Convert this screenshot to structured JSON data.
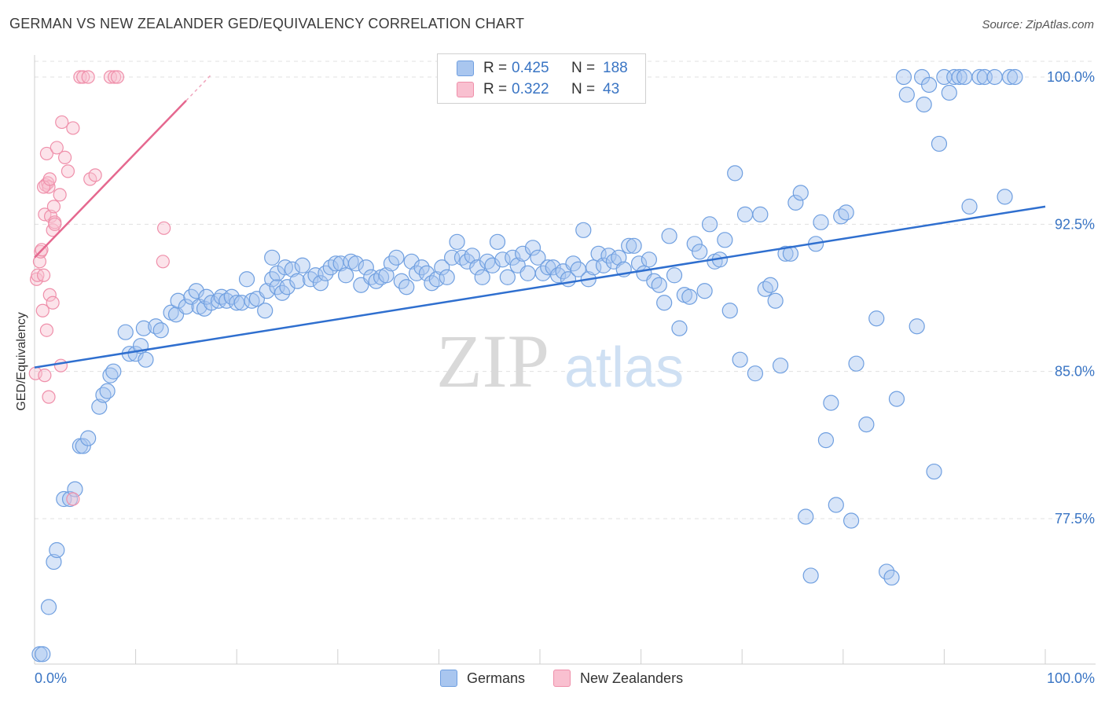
{
  "title": "GERMAN VS NEW ZEALANDER GED/EQUIVALENCY CORRELATION CHART",
  "source": "Source: ZipAtlas.com",
  "watermark": {
    "zip": "ZIP",
    "atlas": "atlas"
  },
  "legend": {
    "rows": [
      {
        "r_label": "R =",
        "r_value": "0.425",
        "n_label": "N =",
        "n_value": "188",
        "color": "#a9c6ef",
        "border": "#6f9fe0"
      },
      {
        "r_label": "R =",
        "r_value": "0.322",
        "n_label": "N =",
        "n_value": "43",
        "color": "#f9c0d0",
        "border": "#ef8faa"
      }
    ]
  },
  "bottom_legend": [
    {
      "label": "Germans",
      "color": "#a9c6ef",
      "border": "#6f9fe0"
    },
    {
      "label": "New Zealanders",
      "color": "#f9c0d0",
      "border": "#ef8faa"
    }
  ],
  "chart_data": {
    "type": "scatter",
    "xlabel": "",
    "ylabel": "GED/Equivalency",
    "xlim": [
      0,
      100
    ],
    "ylim": [
      70.0,
      101.5
    ],
    "x_tick_labels": [
      "0.0%",
      "100.0%"
    ],
    "y_ticks": [
      77.5,
      85.0,
      92.5,
      100.0
    ],
    "y_tick_labels": [
      "77.5%",
      "85.0%",
      "92.5%",
      "100.0%"
    ],
    "grid": "horizontal dashed",
    "series": [
      {
        "name": "Germans",
        "color": "#6f9fe0",
        "fill": "rgba(169,198,239,0.45)",
        "trend": {
          "x": [
            0,
            100
          ],
          "y": [
            85.2,
            93.4
          ]
        },
        "points": [
          [
            0.5,
            70.6
          ],
          [
            0.8,
            70.6
          ],
          [
            1.4,
            73.0
          ],
          [
            1.9,
            75.3
          ],
          [
            2.2,
            75.9
          ],
          [
            2.9,
            78.5
          ],
          [
            3.5,
            78.5
          ],
          [
            4.0,
            79.0
          ],
          [
            4.5,
            81.2
          ],
          [
            4.8,
            81.2
          ],
          [
            5.3,
            81.6
          ],
          [
            6.4,
            83.2
          ],
          [
            6.8,
            83.8
          ],
          [
            7.2,
            84.0
          ],
          [
            7.5,
            84.8
          ],
          [
            7.8,
            85.0
          ],
          [
            9.4,
            85.9
          ],
          [
            10.0,
            85.9
          ],
          [
            10.5,
            86.3
          ],
          [
            11.0,
            85.6
          ],
          [
            9.0,
            87.0
          ],
          [
            10.8,
            87.2
          ],
          [
            12.0,
            87.3
          ],
          [
            12.5,
            87.1
          ],
          [
            13.5,
            88.0
          ],
          [
            14.0,
            87.9
          ],
          [
            14.2,
            88.6
          ],
          [
            15.0,
            88.3
          ],
          [
            15.5,
            88.8
          ],
          [
            16.0,
            89.1
          ],
          [
            16.3,
            88.3
          ],
          [
            16.8,
            88.2
          ],
          [
            17.0,
            88.8
          ],
          [
            17.5,
            88.5
          ],
          [
            18.2,
            88.6
          ],
          [
            18.5,
            88.8
          ],
          [
            19.0,
            88.6
          ],
          [
            19.5,
            88.8
          ],
          [
            20.0,
            88.5
          ],
          [
            20.5,
            88.5
          ],
          [
            21.0,
            89.7
          ],
          [
            21.5,
            88.6
          ],
          [
            22.0,
            88.7
          ],
          [
            22.8,
            88.1
          ],
          [
            23.0,
            89.1
          ],
          [
            23.5,
            89.7
          ],
          [
            24.0,
            89.3
          ],
          [
            24.5,
            89.0
          ],
          [
            25.0,
            89.3
          ],
          [
            23.5,
            90.8
          ],
          [
            24.0,
            90.0
          ],
          [
            24.8,
            90.3
          ],
          [
            25.5,
            90.2
          ],
          [
            26.0,
            89.6
          ],
          [
            26.5,
            90.4
          ],
          [
            27.3,
            89.7
          ],
          [
            27.8,
            89.9
          ],
          [
            28.3,
            89.5
          ],
          [
            28.8,
            90.0
          ],
          [
            29.3,
            90.3
          ],
          [
            29.8,
            90.5
          ],
          [
            30.3,
            90.5
          ],
          [
            30.8,
            89.9
          ],
          [
            31.3,
            90.6
          ],
          [
            31.8,
            90.5
          ],
          [
            32.3,
            89.4
          ],
          [
            32.8,
            90.3
          ],
          [
            33.3,
            89.8
          ],
          [
            33.8,
            89.6
          ],
          [
            34.3,
            89.8
          ],
          [
            34.8,
            89.9
          ],
          [
            35.3,
            90.5
          ],
          [
            35.8,
            90.8
          ],
          [
            36.3,
            89.6
          ],
          [
            36.8,
            89.3
          ],
          [
            37.3,
            90.6
          ],
          [
            37.8,
            90.0
          ],
          [
            38.3,
            90.3
          ],
          [
            38.8,
            90.0
          ],
          [
            39.3,
            89.5
          ],
          [
            39.8,
            89.7
          ],
          [
            40.3,
            90.3
          ],
          [
            40.8,
            89.8
          ],
          [
            41.3,
            90.8
          ],
          [
            41.8,
            91.6
          ],
          [
            42.3,
            90.8
          ],
          [
            42.8,
            90.6
          ],
          [
            43.3,
            90.9
          ],
          [
            43.8,
            90.3
          ],
          [
            44.3,
            89.8
          ],
          [
            44.8,
            90.6
          ],
          [
            45.3,
            90.4
          ],
          [
            45.8,
            91.6
          ],
          [
            46.3,
            90.7
          ],
          [
            46.8,
            89.8
          ],
          [
            47.3,
            90.8
          ],
          [
            47.8,
            90.4
          ],
          [
            48.3,
            91.0
          ],
          [
            48.8,
            90.0
          ],
          [
            49.3,
            91.3
          ],
          [
            49.8,
            90.8
          ],
          [
            50.3,
            90.0
          ],
          [
            50.8,
            90.3
          ],
          [
            51.3,
            90.3
          ],
          [
            51.8,
            89.9
          ],
          [
            52.3,
            90.1
          ],
          [
            52.8,
            89.7
          ],
          [
            53.3,
            90.5
          ],
          [
            53.8,
            90.2
          ],
          [
            54.3,
            92.2
          ],
          [
            54.8,
            89.7
          ],
          [
            55.3,
            90.3
          ],
          [
            55.8,
            91.0
          ],
          [
            56.3,
            90.4
          ],
          [
            56.8,
            90.9
          ],
          [
            57.3,
            90.6
          ],
          [
            57.8,
            90.8
          ],
          [
            58.3,
            90.2
          ],
          [
            58.8,
            91.4
          ],
          [
            59.3,
            91.4
          ],
          [
            59.8,
            90.5
          ],
          [
            60.3,
            90.0
          ],
          [
            60.8,
            90.7
          ],
          [
            61.3,
            89.6
          ],
          [
            61.8,
            89.4
          ],
          [
            62.3,
            88.5
          ],
          [
            62.8,
            91.9
          ],
          [
            63.3,
            89.9
          ],
          [
            63.8,
            87.2
          ],
          [
            64.3,
            88.9
          ],
          [
            64.8,
            88.8
          ],
          [
            65.3,
            91.5
          ],
          [
            65.8,
            91.1
          ],
          [
            66.3,
            89.1
          ],
          [
            66.8,
            92.5
          ],
          [
            67.3,
            90.6
          ],
          [
            67.8,
            90.7
          ],
          [
            68.3,
            91.7
          ],
          [
            68.8,
            88.1
          ],
          [
            69.3,
            95.1
          ],
          [
            69.8,
            85.6
          ],
          [
            70.3,
            93.0
          ],
          [
            71.3,
            84.9
          ],
          [
            71.8,
            93.0
          ],
          [
            72.3,
            89.2
          ],
          [
            72.8,
            89.4
          ],
          [
            73.3,
            88.6
          ],
          [
            73.8,
            85.3
          ],
          [
            74.3,
            91.0
          ],
          [
            74.8,
            91.0
          ],
          [
            75.3,
            93.6
          ],
          [
            75.8,
            94.1
          ],
          [
            76.3,
            77.6
          ],
          [
            76.8,
            74.6
          ],
          [
            77.3,
            91.5
          ],
          [
            77.8,
            92.6
          ],
          [
            78.3,
            81.5
          ],
          [
            78.8,
            83.4
          ],
          [
            79.3,
            78.2
          ],
          [
            79.8,
            92.9
          ],
          [
            80.3,
            93.1
          ],
          [
            80.8,
            77.4
          ],
          [
            81.3,
            85.4
          ],
          [
            82.3,
            82.3
          ],
          [
            83.3,
            87.7
          ],
          [
            84.3,
            74.8
          ],
          [
            84.8,
            74.5
          ],
          [
            85.3,
            83.6
          ],
          [
            86.0,
            100.0
          ],
          [
            86.3,
            99.1
          ],
          [
            87.3,
            87.3
          ],
          [
            87.8,
            100.0
          ],
          [
            88.0,
            98.6
          ],
          [
            88.5,
            99.6
          ],
          [
            89.0,
            79.9
          ],
          [
            89.5,
            96.6
          ],
          [
            90.0,
            100.0
          ],
          [
            90.5,
            99.2
          ],
          [
            91.0,
            100.0
          ],
          [
            91.5,
            100.0
          ],
          [
            92.0,
            100.0
          ],
          [
            92.5,
            93.4
          ],
          [
            93.5,
            100.0
          ],
          [
            94.0,
            100.0
          ],
          [
            95.0,
            100.0
          ],
          [
            96.0,
            93.9
          ],
          [
            96.5,
            100.0
          ],
          [
            97.0,
            100.0
          ]
        ]
      },
      {
        "name": "New Zealanders",
        "color": "#ef8faa",
        "fill": "rgba(249,192,208,0.45)",
        "trend": {
          "x": [
            0,
            15
          ],
          "y": [
            90.8,
            98.8
          ]
        },
        "points": [
          [
            0.1,
            84.9
          ],
          [
            0.2,
            89.7
          ],
          [
            0.3,
            89.9
          ],
          [
            0.5,
            90.6
          ],
          [
            0.6,
            91.1
          ],
          [
            0.7,
            91.2
          ],
          [
            0.8,
            88.1
          ],
          [
            0.9,
            89.9
          ],
          [
            1.0,
            93.0
          ],
          [
            1.1,
            94.5
          ],
          [
            1.2,
            96.1
          ],
          [
            1.3,
            94.6
          ],
          [
            1.4,
            94.4
          ],
          [
            1.5,
            88.9
          ],
          [
            1.6,
            92.9
          ],
          [
            1.8,
            92.2
          ],
          [
            1.9,
            93.4
          ],
          [
            2.0,
            92.6
          ],
          [
            2.2,
            96.4
          ],
          [
            2.5,
            94.0
          ],
          [
            2.7,
            97.7
          ],
          [
            3.0,
            95.9
          ],
          [
            3.3,
            95.2
          ],
          [
            3.8,
            97.4
          ],
          [
            1.4,
            83.7
          ],
          [
            1.0,
            84.8
          ],
          [
            1.2,
            87.1
          ],
          [
            1.8,
            88.5
          ],
          [
            2.6,
            85.3
          ],
          [
            3.8,
            78.5
          ],
          [
            4.5,
            100.0
          ],
          [
            4.8,
            100.0
          ],
          [
            5.3,
            100.0
          ],
          [
            7.5,
            100.0
          ],
          [
            7.9,
            100.0
          ],
          [
            8.2,
            100.0
          ],
          [
            5.5,
            94.8
          ],
          [
            6.0,
            95.0
          ],
          [
            12.8,
            92.3
          ],
          [
            12.7,
            90.6
          ],
          [
            0.9,
            94.4
          ],
          [
            1.5,
            94.8
          ],
          [
            2.0,
            92.5
          ]
        ]
      }
    ]
  }
}
